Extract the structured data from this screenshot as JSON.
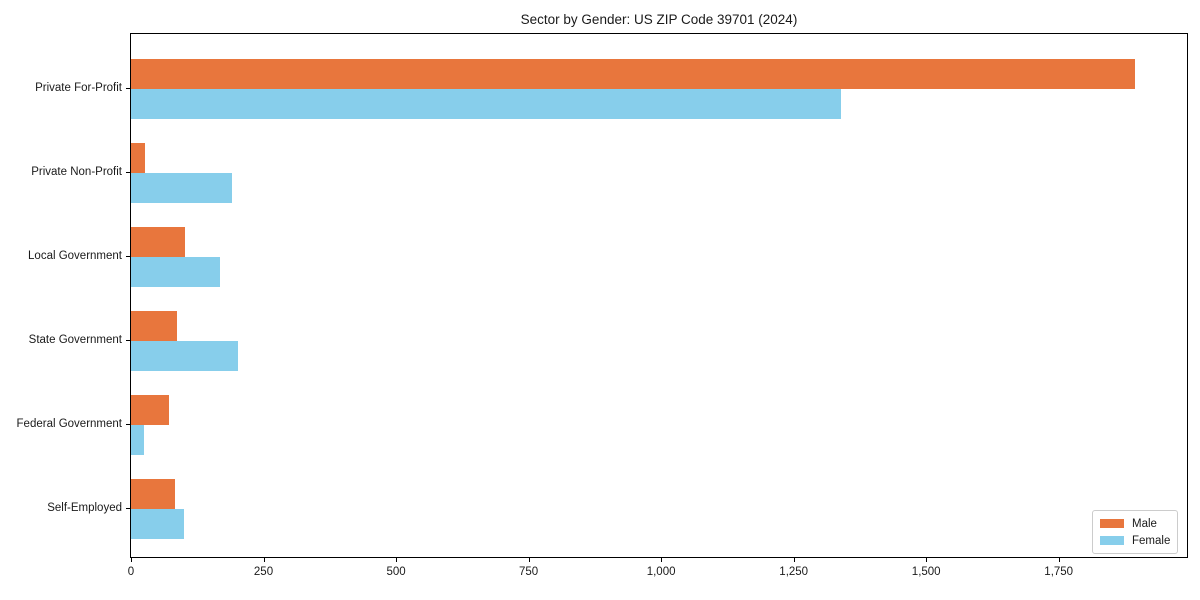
{
  "page": {
    "kind": "matplotlib-style horizontal grouped bar chart"
  },
  "chart_data": {
    "type": "bar",
    "orientation": "horizontal",
    "title": "Sector by Gender: US ZIP Code 39701 (2024)",
    "categories": [
      "Private For-Profit",
      "Private Non-Profit",
      "Local Government",
      "State Government",
      "Federal Government",
      "Self-Employed"
    ],
    "series": [
      {
        "name": "Male",
        "color": "#e8763d",
        "values": [
          1894,
          27,
          102,
          87,
          71,
          82
        ]
      },
      {
        "name": "Female",
        "color": "#87ceeb",
        "values": [
          1340,
          190,
          168,
          202,
          24,
          99
        ]
      }
    ],
    "xlabel": "",
    "ylabel": "",
    "xlim": [
      0,
      1992
    ],
    "xticks": [
      0,
      250,
      500,
      750,
      1000,
      1250,
      1500,
      1750
    ],
    "xtick_labels": [
      "0",
      "250",
      "500",
      "750",
      "1,000",
      "1,250",
      "1,500",
      "1,750"
    ],
    "legend_position": "lower right",
    "grid": false,
    "background_color": "#ffffff",
    "spine_color": "#000000"
  }
}
